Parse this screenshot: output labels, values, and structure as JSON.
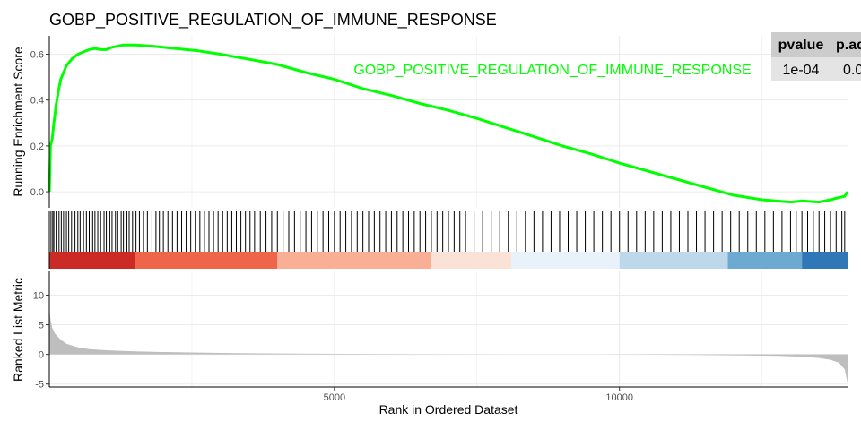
{
  "chart_data": {
    "type": "line",
    "title": "GOBP_POSITIVE_REGULATION_OF_IMMUNE_RESPONSE",
    "gene_set_label": "GOBP_POSITIVE_REGULATION_OF_IMMUNE_RESPONSE",
    "colors": {
      "curve": "#00ff00",
      "ranked_fill": "#bebebe",
      "hit_line": "#000000"
    },
    "xlabel": "Rank in Ordered Dataset",
    "xlim": [
      0,
      14000
    ],
    "x_ticks": [
      5000,
      10000
    ],
    "x_tick_labels": [
      "5000",
      "10000"
    ],
    "running_score": {
      "ylabel": "Running Enrichment Score",
      "ylim": [
        -0.07,
        0.68
      ],
      "y_ticks": [
        0.0,
        0.2,
        0.4,
        0.6
      ],
      "y_tick_labels": [
        "0.0",
        "0.2",
        "0.4",
        "0.6"
      ],
      "x": [
        0,
        20,
        50,
        80,
        120,
        160,
        200,
        250,
        300,
        400,
        500,
        600,
        700,
        800,
        900,
        1000,
        1100,
        1200,
        1300,
        1500,
        1800,
        2200,
        2600,
        3000,
        3500,
        4000,
        4500,
        5000,
        5500,
        6000,
        6500,
        7000,
        7500,
        8000,
        8500,
        9000,
        9500,
        10000,
        10500,
        11000,
        11500,
        12000,
        12500,
        13000,
        13200,
        13500,
        13700,
        13850,
        13950,
        14000
      ],
      "y": [
        0.0,
        0.2,
        0.23,
        0.3,
        0.38,
        0.44,
        0.49,
        0.52,
        0.55,
        0.58,
        0.6,
        0.61,
        0.62,
        0.625,
        0.62,
        0.62,
        0.63,
        0.635,
        0.64,
        0.64,
        0.635,
        0.625,
        0.615,
        0.6,
        0.578,
        0.555,
        0.52,
        0.49,
        0.45,
        0.42,
        0.385,
        0.355,
        0.32,
        0.28,
        0.24,
        0.2,
        0.165,
        0.125,
        0.09,
        0.055,
        0.02,
        -0.015,
        -0.035,
        -0.045,
        -0.04,
        -0.045,
        -0.035,
        -0.025,
        -0.02,
        0.0
      ]
    },
    "ranked_metric": {
      "ylabel": "Ranked List Metric",
      "ylim": [
        -5.5,
        14
      ],
      "y_ticks": [
        -5,
        0,
        5,
        10
      ],
      "y_tick_labels": [
        "-5",
        "0",
        "5",
        "10"
      ],
      "x": [
        0,
        20,
        50,
        100,
        200,
        300,
        500,
        700,
        1000,
        1500,
        2000,
        3000,
        4000,
        6000,
        8000,
        9000,
        9600,
        10000,
        11000,
        12000,
        12800,
        13200,
        13500,
        13700,
        13850,
        13950,
        14000
      ],
      "y": [
        8.0,
        6.0,
        4.5,
        3.5,
        2.5,
        1.8,
        1.2,
        0.9,
        0.7,
        0.5,
        0.4,
        0.25,
        0.15,
        0.05,
        0.0,
        0.0,
        0.0,
        -0.02,
        -0.08,
        -0.15,
        -0.25,
        -0.4,
        -0.6,
        -0.9,
        -1.4,
        -2.5,
        -4.8
      ]
    },
    "hits": [
      0,
      30,
      60,
      80,
      120,
      170,
      210,
      250,
      300,
      340,
      390,
      450,
      500,
      540,
      600,
      650,
      700,
      760,
      800,
      850,
      900,
      960,
      1000,
      1060,
      1100,
      1160,
      1200,
      1260,
      1300,
      1360,
      1400,
      1460,
      1520,
      1580,
      1650,
      1720,
      1800,
      1870,
      1930,
      2000,
      2080,
      2160,
      2240,
      2320,
      2400,
      2480,
      2560,
      2640,
      2720,
      2800,
      2880,
      2960,
      3040,
      3120,
      3200,
      3280,
      3360,
      3440,
      3520,
      3600,
      3700,
      3800,
      3900,
      4000,
      4100,
      4200,
      4300,
      4400,
      4500,
      4600,
      4700,
      4800,
      4900,
      5000,
      5100,
      5200,
      5300,
      5400,
      5500,
      5600,
      5700,
      5800,
      5900,
      6000,
      6100,
      6200,
      6300,
      6400,
      6500,
      6600,
      6700,
      6800,
      6900,
      7000,
      7100,
      7200,
      7300,
      7450,
      7600,
      7750,
      7900,
      8050,
      8200,
      8350,
      8500,
      8650,
      8800,
      8950,
      9100,
      9250,
      9400,
      9550,
      9700,
      9850,
      10000,
      10150,
      10300,
      10450,
      10600,
      10750,
      10900,
      11050,
      11200,
      11350,
      11500,
      11650,
      11800,
      11950,
      12100,
      12250,
      12400,
      12550,
      12700,
      12850,
      13000,
      13100,
      13200,
      13300,
      13400,
      13500,
      13600,
      13700,
      13800,
      13900,
      13950
    ],
    "color_band": [
      {
        "start": 0,
        "end": 1500,
        "color": "#cb2b24"
      },
      {
        "start": 1500,
        "end": 4000,
        "color": "#ef6549"
      },
      {
        "start": 4000,
        "end": 6700,
        "color": "#f9af96"
      },
      {
        "start": 6700,
        "end": 8100,
        "color": "#fbe2d7"
      },
      {
        "start": 8100,
        "end": 10000,
        "color": "#e9f1fb"
      },
      {
        "start": 10000,
        "end": 11900,
        "color": "#bcd8ea"
      },
      {
        "start": 11900,
        "end": 13200,
        "color": "#6ea9d2"
      },
      {
        "start": 13200,
        "end": 14000,
        "color": "#2f77b6"
      }
    ],
    "stats_table": {
      "headers": [
        "pvalue",
        "p.ad"
      ],
      "values": [
        "1e-04",
        "0.0"
      ]
    }
  }
}
